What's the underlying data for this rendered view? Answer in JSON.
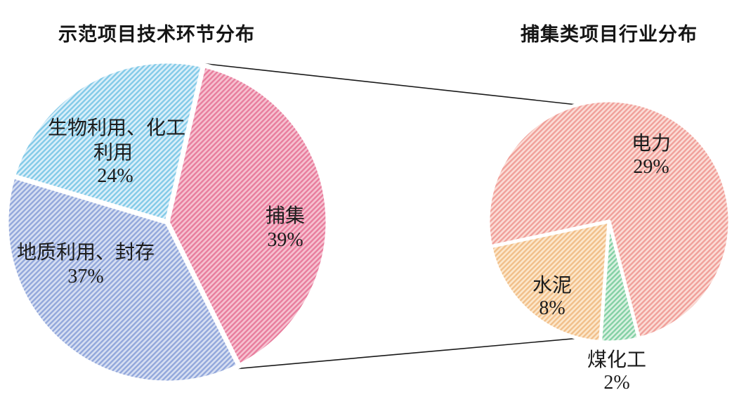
{
  "styles": {
    "background": "#ffffff",
    "text_color": "#1c1c1c",
    "callout_color": "#1a1a1a",
    "slice_divider_color": "#ffffff"
  },
  "chart_data": [
    {
      "type": "pie",
      "title": "示范项目技术环节分布",
      "unit": "%",
      "start_angle_deg": 13,
      "legend_position": "labels-inside",
      "categories": [
        "捕集",
        "地质利用、封存",
        "生物利用、化工利用"
      ],
      "values": [
        39,
        37,
        24
      ],
      "slices": [
        {
          "label": "捕集",
          "value": 39,
          "pct_label": "39%",
          "stripe_color": "#e87d9d",
          "base_color": "#f6c2d1",
          "label_lines": [
            "捕集",
            "39%"
          ]
        },
        {
          "label": "地质利用、封存",
          "value": 37,
          "pct_label": "37%",
          "stripe_color": "#92a7db",
          "base_color": "#d7dff2",
          "label_lines": [
            "地质利用、封存",
            "37%"
          ]
        },
        {
          "label": "生物利用、化工利用",
          "value": 24,
          "pct_label": "24%",
          "stripe_color": "#82cae8",
          "base_color": "#dbeff9",
          "label_lines": [
            "生物利用、化工",
            "利用",
            "24%"
          ]
        }
      ]
    },
    {
      "type": "pie",
      "title": "捕集类项目行业分布",
      "unit": "%",
      "start_angle_deg": 258,
      "legend_position": "labels-inside",
      "categories": [
        "电力",
        "煤化工",
        "水泥"
      ],
      "values": [
        29,
        2,
        8
      ],
      "slices": [
        {
          "label": "电力",
          "value": 29,
          "pct_label": "29%",
          "stripe_color": "#f0a09a",
          "base_color": "#fbdcd6",
          "label_lines": [
            "电力",
            "29%"
          ]
        },
        {
          "label": "煤化工",
          "value": 2,
          "pct_label": "2%",
          "stripe_color": "#83d0a4",
          "base_color": "#d9f1e1",
          "label_lines": [
            "煤化工",
            "2%"
          ]
        },
        {
          "label": "水泥",
          "value": 8,
          "pct_label": "8%",
          "stripe_color": "#f1bf8a",
          "base_color": "#fce7cb",
          "label_lines": [
            "水泥",
            "8%"
          ]
        }
      ]
    }
  ]
}
